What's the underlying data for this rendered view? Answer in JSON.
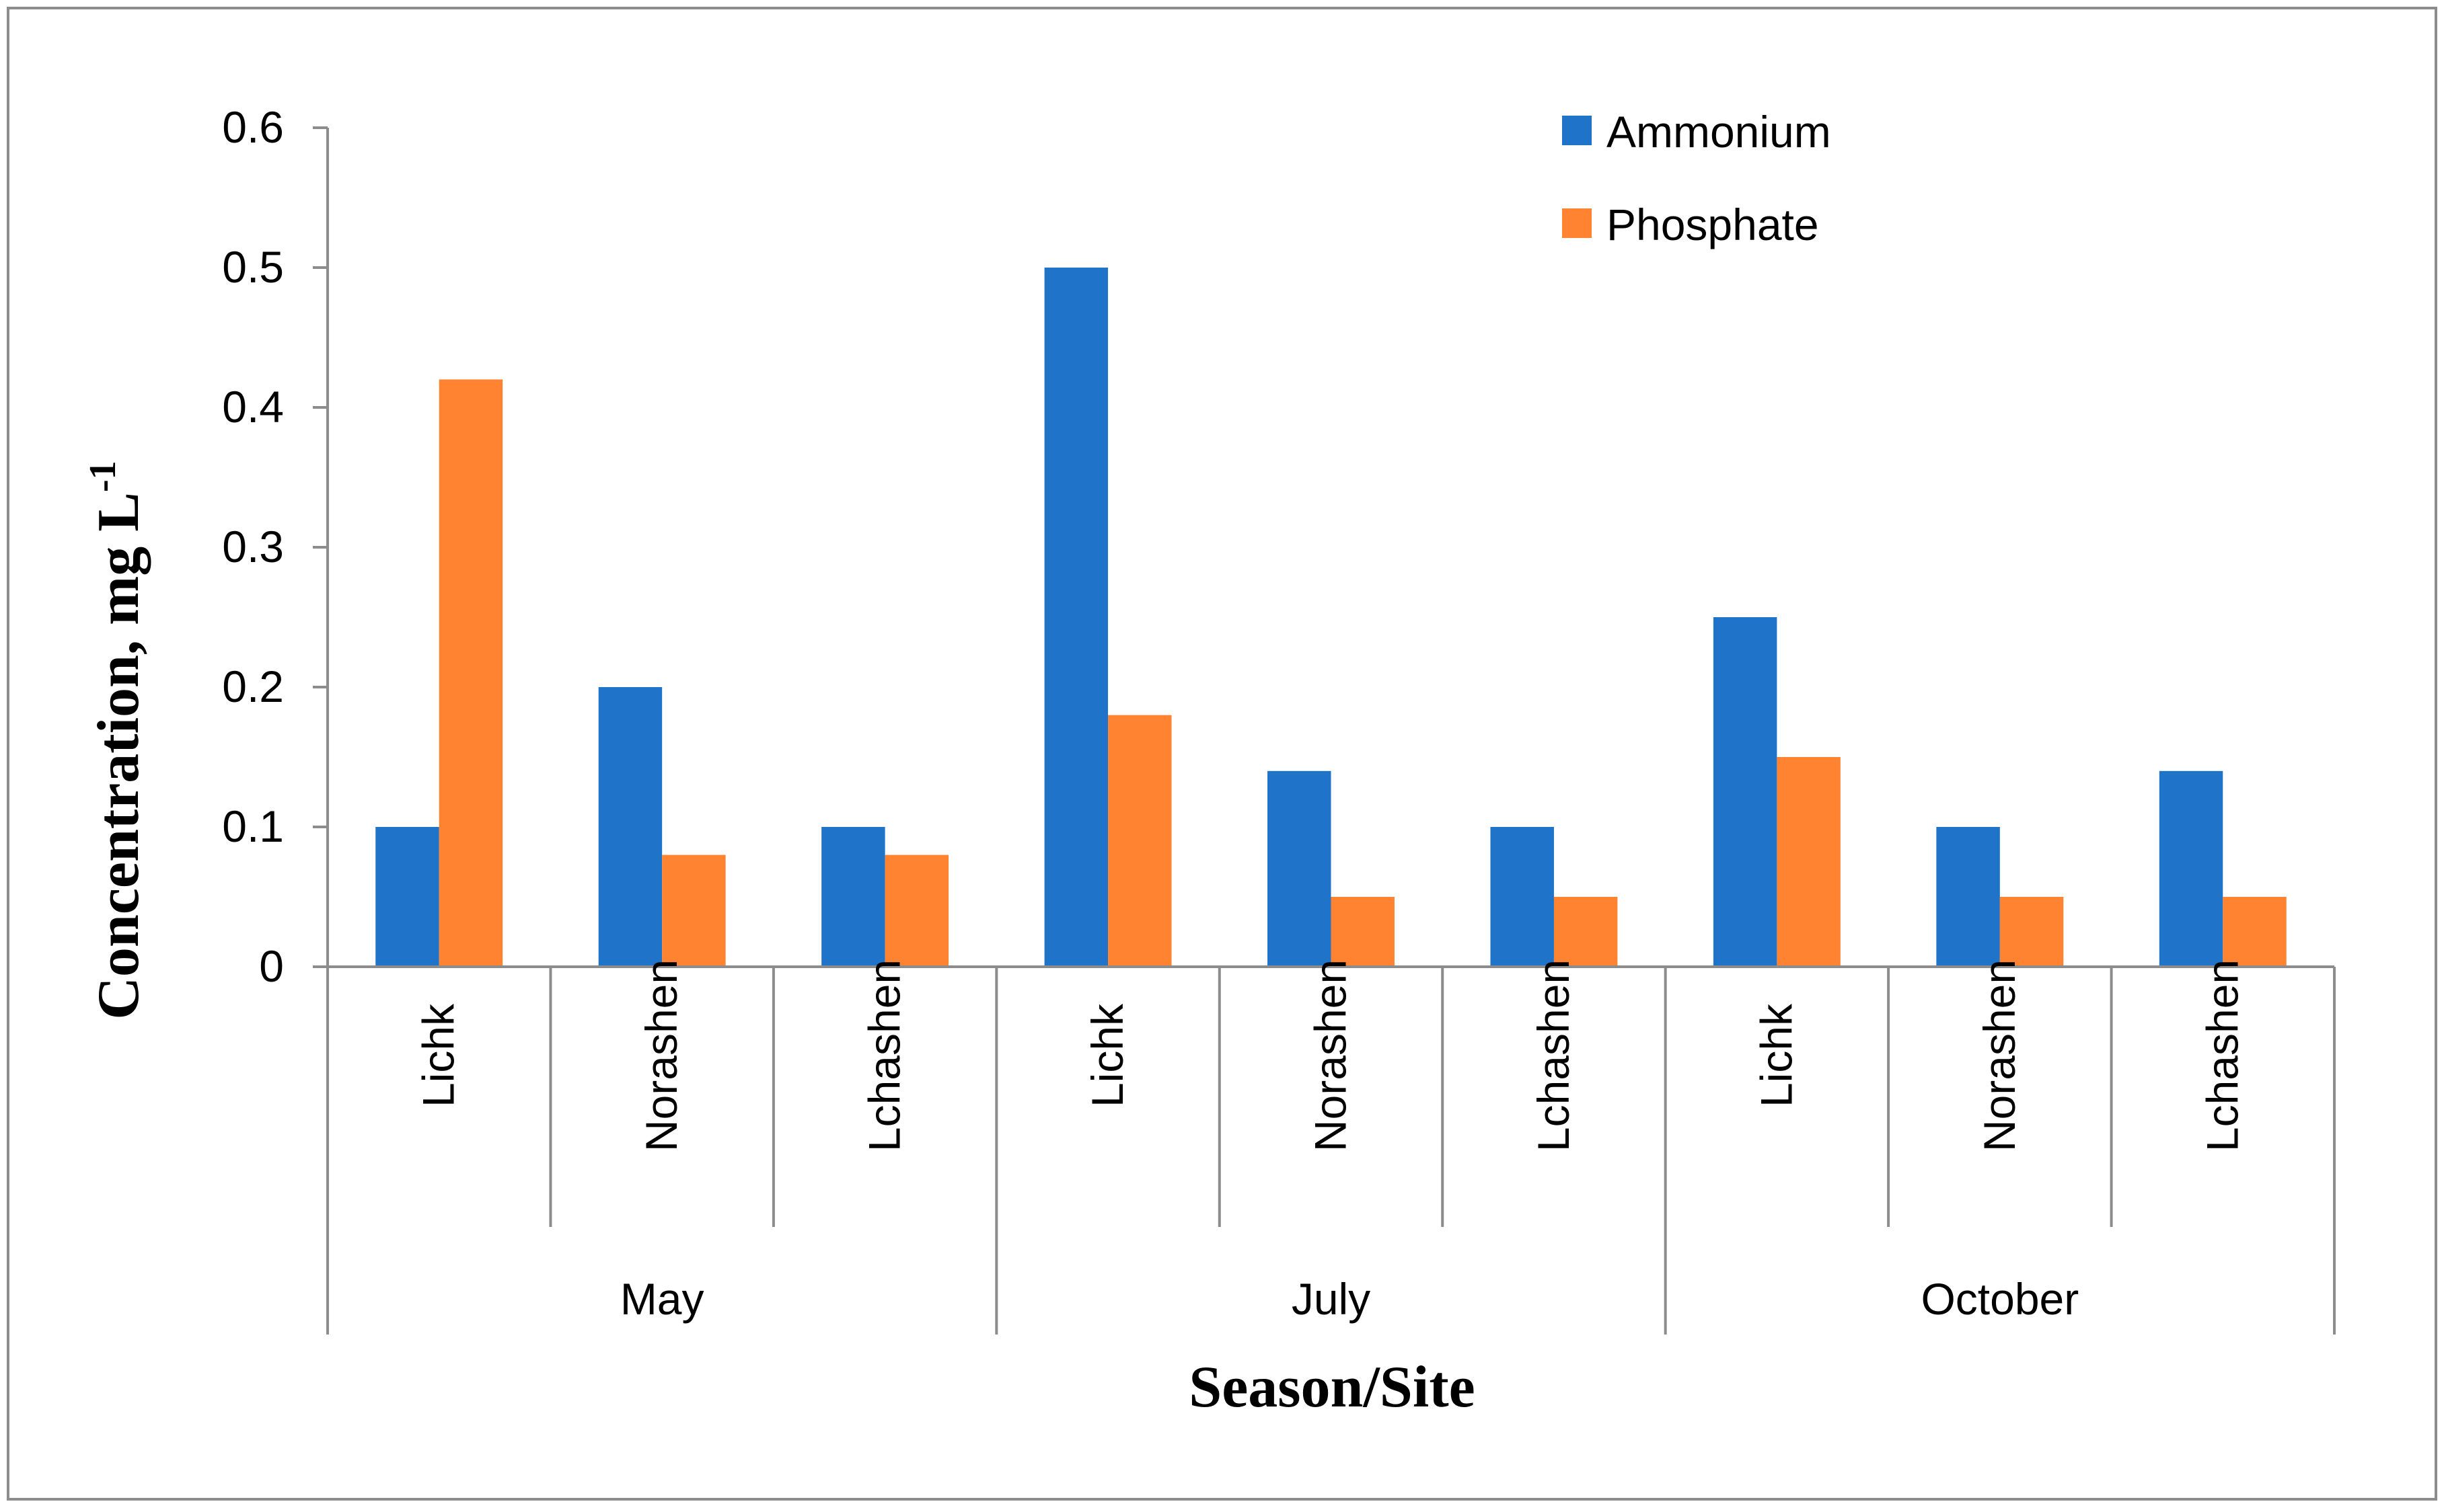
{
  "chart_data": {
    "type": "bar",
    "title": "",
    "xlabel": "Season/Site",
    "ylabel": "Concentration, mg L",
    "ylabel_superscript": "-1",
    "ylim": [
      0,
      0.6
    ],
    "yticks": [
      "0",
      "0.1",
      "0.2",
      "0.3",
      "0.4",
      "0.5",
      "0.6"
    ],
    "groups": [
      {
        "name": "May",
        "sites": [
          "Lichk",
          "Norashen",
          "Lchashen"
        ]
      },
      {
        "name": "July",
        "sites": [
          "Lichk",
          "Norashen",
          "Lchashen"
        ]
      },
      {
        "name": "October",
        "sites": [
          "Lichk",
          "Norashen",
          "Lchashen"
        ]
      }
    ],
    "series": [
      {
        "name": "Ammonium",
        "color": "#1F73C9",
        "values": [
          0.1,
          0.2,
          0.1,
          0.5,
          0.14,
          0.1,
          0.25,
          0.1,
          0.14
        ]
      },
      {
        "name": "Phosphate",
        "color": "#FF8330",
        "values": [
          0.42,
          0.08,
          0.08,
          0.18,
          0.05,
          0.05,
          0.15,
          0.05,
          0.05
        ]
      }
    ],
    "legend": "top-right",
    "grid": false
  }
}
